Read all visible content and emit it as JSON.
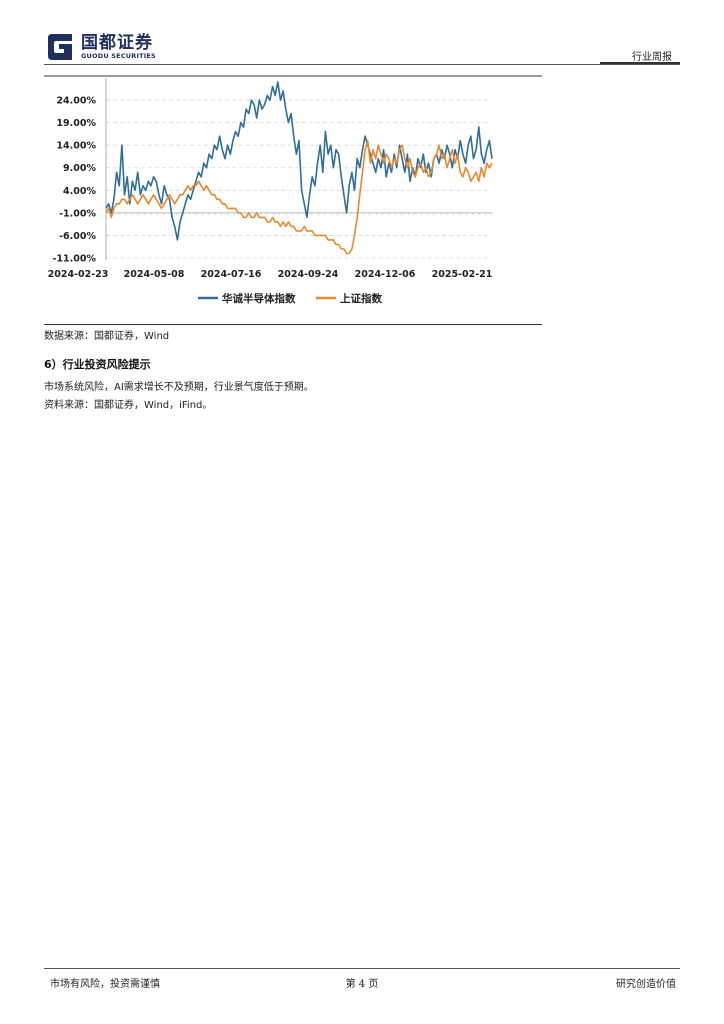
{
  "header": {
    "logo_cn": "国都证券",
    "logo_en": "GUODU SECURITIES",
    "report_type": "行业周报"
  },
  "chart_data": {
    "type": "line",
    "y_ticks": [
      "24.00%",
      "19.00%",
      "14.00%",
      "9.00%",
      "4.00%",
      "-1.00%",
      "-6.00%",
      "-11.00%"
    ],
    "x_ticks": [
      "2024-02-23",
      "2024-05-08",
      "2024-07-16",
      "2024-09-24",
      "2024-12-06",
      "2025-02-21"
    ],
    "ylim": [
      -11,
      28
    ],
    "grid": true,
    "legend_position": "bottom",
    "series": [
      {
        "name": "华诚半导体指数",
        "color": "#2e6e9b",
        "values": [
          [
            0,
            0
          ],
          [
            2,
            1
          ],
          [
            4,
            -1
          ],
          [
            6,
            2
          ],
          [
            8,
            8
          ],
          [
            10,
            5
          ],
          [
            12,
            14
          ],
          [
            14,
            3
          ],
          [
            16,
            7
          ],
          [
            18,
            1
          ],
          [
            20,
            6
          ],
          [
            22,
            4
          ],
          [
            24,
            8
          ],
          [
            26,
            3
          ],
          [
            28,
            5
          ],
          [
            30,
            4
          ],
          [
            32,
            6
          ],
          [
            34,
            5
          ],
          [
            36,
            7
          ],
          [
            38,
            6
          ],
          [
            40,
            3
          ],
          [
            42,
            1
          ],
          [
            44,
            5
          ],
          [
            46,
            3
          ],
          [
            48,
            2
          ],
          [
            50,
            -2
          ],
          [
            52,
            -4
          ],
          [
            54,
            -7
          ],
          [
            56,
            -3
          ],
          [
            58,
            -1
          ],
          [
            60,
            1
          ],
          [
            62,
            3
          ],
          [
            64,
            2
          ],
          [
            66,
            4
          ],
          [
            68,
            6
          ],
          [
            70,
            8
          ],
          [
            72,
            7
          ],
          [
            74,
            10
          ],
          [
            76,
            9
          ],
          [
            78,
            12
          ],
          [
            80,
            11
          ],
          [
            82,
            14
          ],
          [
            84,
            13
          ],
          [
            86,
            16
          ],
          [
            88,
            13
          ],
          [
            90,
            11
          ],
          [
            92,
            14
          ],
          [
            94,
            12
          ],
          [
            96,
            15
          ],
          [
            98,
            17
          ],
          [
            100,
            16
          ],
          [
            102,
            19
          ],
          [
            104,
            18
          ],
          [
            106,
            22
          ],
          [
            108,
            21
          ],
          [
            110,
            24
          ],
          [
            112,
            23
          ],
          [
            114,
            20
          ],
          [
            116,
            24
          ],
          [
            118,
            22
          ],
          [
            120,
            23
          ],
          [
            122,
            25
          ],
          [
            124,
            24
          ],
          [
            126,
            27
          ],
          [
            128,
            25
          ],
          [
            130,
            28
          ],
          [
            132,
            24
          ],
          [
            134,
            26
          ],
          [
            136,
            22
          ],
          [
            138,
            19
          ],
          [
            140,
            21
          ],
          [
            142,
            16
          ],
          [
            144,
            12
          ],
          [
            146,
            15
          ],
          [
            148,
            4
          ],
          [
            150,
            1
          ],
          [
            152,
            -2
          ],
          [
            154,
            3
          ],
          [
            156,
            7
          ],
          [
            158,
            5
          ],
          [
            160,
            10
          ],
          [
            162,
            14
          ],
          [
            164,
            8
          ],
          [
            166,
            17
          ],
          [
            168,
            12
          ],
          [
            170,
            14
          ],
          [
            172,
            9
          ],
          [
            174,
            13
          ],
          [
            176,
            12
          ],
          [
            178,
            7
          ],
          [
            180,
            3
          ],
          [
            182,
            -1
          ],
          [
            184,
            5
          ],
          [
            186,
            8
          ],
          [
            188,
            4
          ],
          [
            190,
            11
          ],
          [
            192,
            9
          ],
          [
            194,
            13
          ],
          [
            196,
            16
          ],
          [
            198,
            14
          ],
          [
            200,
            12
          ],
          [
            202,
            10
          ],
          [
            204,
            8
          ],
          [
            206,
            11
          ],
          [
            208,
            9
          ],
          [
            210,
            13
          ],
          [
            212,
            7
          ],
          [
            214,
            10
          ],
          [
            216,
            8
          ],
          [
            218,
            12
          ],
          [
            220,
            9
          ],
          [
            222,
            14
          ],
          [
            224,
            11
          ],
          [
            226,
            8
          ],
          [
            228,
            12
          ],
          [
            230,
            6
          ],
          [
            232,
            9
          ],
          [
            234,
            7
          ],
          [
            236,
            11
          ],
          [
            238,
            9
          ],
          [
            240,
            12
          ],
          [
            242,
            8
          ],
          [
            244,
            10
          ],
          [
            246,
            7
          ],
          [
            248,
            11
          ],
          [
            250,
            12
          ],
          [
            252,
            10
          ],
          [
            254,
            13
          ],
          [
            256,
            11
          ],
          [
            258,
            14
          ],
          [
            260,
            12
          ],
          [
            262,
            9
          ],
          [
            264,
            13
          ],
          [
            266,
            11
          ],
          [
            268,
            15
          ],
          [
            270,
            12
          ],
          [
            272,
            10
          ],
          [
            274,
            14
          ],
          [
            276,
            16
          ],
          [
            278,
            11
          ],
          [
            280,
            13
          ],
          [
            282,
            18
          ],
          [
            284,
            12
          ],
          [
            286,
            10
          ],
          [
            288,
            13
          ],
          [
            290,
            15
          ],
          [
            292,
            11
          ]
        ]
      },
      {
        "name": "上证指数",
        "color": "#e8892f",
        "values": [
          [
            0,
            -1
          ],
          [
            2,
            0
          ],
          [
            4,
            -2
          ],
          [
            6,
            0
          ],
          [
            8,
            1
          ],
          [
            10,
            1
          ],
          [
            12,
            2
          ],
          [
            14,
            2
          ],
          [
            16,
            1
          ],
          [
            18,
            2
          ],
          [
            20,
            3
          ],
          [
            22,
            2
          ],
          [
            24,
            1
          ],
          [
            26,
            2
          ],
          [
            28,
            3
          ],
          [
            30,
            2
          ],
          [
            32,
            1
          ],
          [
            34,
            2
          ],
          [
            36,
            3
          ],
          [
            38,
            2
          ],
          [
            40,
            1
          ],
          [
            42,
            0
          ],
          [
            44,
            1
          ],
          [
            46,
            2
          ],
          [
            48,
            3
          ],
          [
            50,
            2
          ],
          [
            52,
            1
          ],
          [
            54,
            2
          ],
          [
            56,
            3
          ],
          [
            58,
            3
          ],
          [
            60,
            4
          ],
          [
            62,
            5
          ],
          [
            64,
            4
          ],
          [
            66,
            5
          ],
          [
            68,
            5
          ],
          [
            70,
            6
          ],
          [
            72,
            5
          ],
          [
            74,
            4
          ],
          [
            76,
            5
          ],
          [
            78,
            4
          ],
          [
            80,
            3
          ],
          [
            82,
            3
          ],
          [
            84,
            2
          ],
          [
            86,
            2
          ],
          [
            88,
            1
          ],
          [
            90,
            1
          ],
          [
            92,
            0
          ],
          [
            94,
            0
          ],
          [
            96,
            0
          ],
          [
            98,
            0
          ],
          [
            100,
            -1
          ],
          [
            102,
            -1
          ],
          [
            104,
            -2
          ],
          [
            106,
            -2
          ],
          [
            108,
            -1
          ],
          [
            110,
            -2
          ],
          [
            112,
            -2
          ],
          [
            114,
            -1
          ],
          [
            116,
            -2
          ],
          [
            118,
            -2
          ],
          [
            120,
            -2
          ],
          [
            122,
            -3
          ],
          [
            124,
            -3
          ],
          [
            126,
            -2
          ],
          [
            128,
            -3
          ],
          [
            130,
            -3
          ],
          [
            132,
            -4
          ],
          [
            134,
            -3
          ],
          [
            136,
            -4
          ],
          [
            138,
            -3
          ],
          [
            140,
            -4
          ],
          [
            142,
            -4
          ],
          [
            144,
            -5
          ],
          [
            146,
            -5
          ],
          [
            148,
            -5
          ],
          [
            150,
            -4
          ],
          [
            152,
            -5
          ],
          [
            154,
            -5
          ],
          [
            156,
            -5
          ],
          [
            158,
            -6
          ],
          [
            160,
            -6
          ],
          [
            162,
            -6
          ],
          [
            164,
            -6
          ],
          [
            166,
            -6
          ],
          [
            168,
            -7
          ],
          [
            170,
            -7
          ],
          [
            172,
            -7
          ],
          [
            174,
            -8
          ],
          [
            176,
            -8
          ],
          [
            178,
            -9
          ],
          [
            180,
            -9
          ],
          [
            182,
            -10
          ],
          [
            184,
            -10
          ],
          [
            186,
            -9
          ],
          [
            188,
            -6
          ],
          [
            190,
            -2
          ],
          [
            192,
            3
          ],
          [
            194,
            8
          ],
          [
            196,
            13
          ],
          [
            198,
            15
          ],
          [
            200,
            10
          ],
          [
            202,
            13
          ],
          [
            204,
            11
          ],
          [
            206,
            14
          ],
          [
            208,
            12
          ],
          [
            210,
            10
          ],
          [
            212,
            12
          ],
          [
            214,
            11
          ],
          [
            216,
            9
          ],
          [
            218,
            11
          ],
          [
            220,
            10
          ],
          [
            222,
            13
          ],
          [
            224,
            14
          ],
          [
            226,
            11
          ],
          [
            228,
            9
          ],
          [
            230,
            11
          ],
          [
            232,
            8
          ],
          [
            234,
            7
          ],
          [
            236,
            9
          ],
          [
            238,
            10
          ],
          [
            240,
            8
          ],
          [
            242,
            9
          ],
          [
            244,
            7
          ],
          [
            246,
            8
          ],
          [
            248,
            11
          ],
          [
            250,
            12
          ],
          [
            252,
            14
          ],
          [
            254,
            11
          ],
          [
            256,
            12
          ],
          [
            258,
            9
          ],
          [
            260,
            11
          ],
          [
            262,
            13
          ],
          [
            264,
            10
          ],
          [
            266,
            12
          ],
          [
            268,
            8
          ],
          [
            270,
            7
          ],
          [
            272,
            9
          ],
          [
            274,
            8
          ],
          [
            276,
            6
          ],
          [
            278,
            7
          ],
          [
            280,
            8
          ],
          [
            282,
            6
          ],
          [
            284,
            9
          ],
          [
            286,
            7
          ],
          [
            288,
            10
          ],
          [
            290,
            9
          ],
          [
            292,
            10
          ]
        ]
      }
    ]
  },
  "source_note": "数据来源：国都证券，Wind",
  "risk_section": {
    "title": "6）行业投资风险提示",
    "text": "市场系统风险，AI需求增长不及预期，行业景气度低于预期。",
    "source": "资料来源：国都证券，Wind，iFind。"
  },
  "footer": {
    "left": "市场有风险，投资需谨慎",
    "page": "第 4 页",
    "right": "研究创造价值"
  }
}
